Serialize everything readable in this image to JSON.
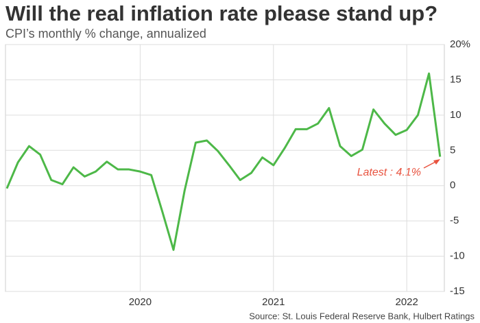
{
  "chart_data": {
    "type": "line",
    "title": "Will the real inflation rate please stand up?",
    "subtitle": "CPI’s monthly % change, annualized",
    "source": "Source: St. Louis Federal Reserve Bank, Hulbert Ratings",
    "annotation": "Latest : 4.1%",
    "categories": [
      null,
      null,
      null,
      null,
      null,
      null,
      null,
      null,
      null,
      null,
      null,
      null,
      "2020",
      null,
      null,
      null,
      null,
      null,
      null,
      null,
      null,
      null,
      null,
      null,
      "2021",
      null,
      null,
      null,
      null,
      null,
      null,
      null,
      null,
      null,
      null,
      null,
      "2022",
      null,
      null,
      null
    ],
    "values": [
      -0.4,
      3.3,
      5.6,
      4.4,
      0.8,
      0.2,
      2.6,
      1.3,
      2.0,
      3.4,
      2.3,
      2.3,
      2.0,
      1.5,
      -3.7,
      -9.1,
      -0.7,
      6.1,
      6.4,
      4.9,
      2.9,
      0.8,
      1.8,
      4.0,
      2.9,
      5.3,
      8.0,
      8.0,
      8.8,
      11.0,
      5.6,
      4.2,
      5.1,
      10.8,
      8.8,
      7.2,
      7.9,
      10.0,
      15.9,
      4.1
    ],
    "color": "#4db848",
    "ylim": [
      -15,
      20
    ],
    "yticks": [
      -15,
      -10,
      -5,
      0,
      5,
      10,
      {
        "value": 15,
        "label": "15"
      },
      {
        "value": 20,
        "label": "20%"
      }
    ],
    "grid": true
  }
}
